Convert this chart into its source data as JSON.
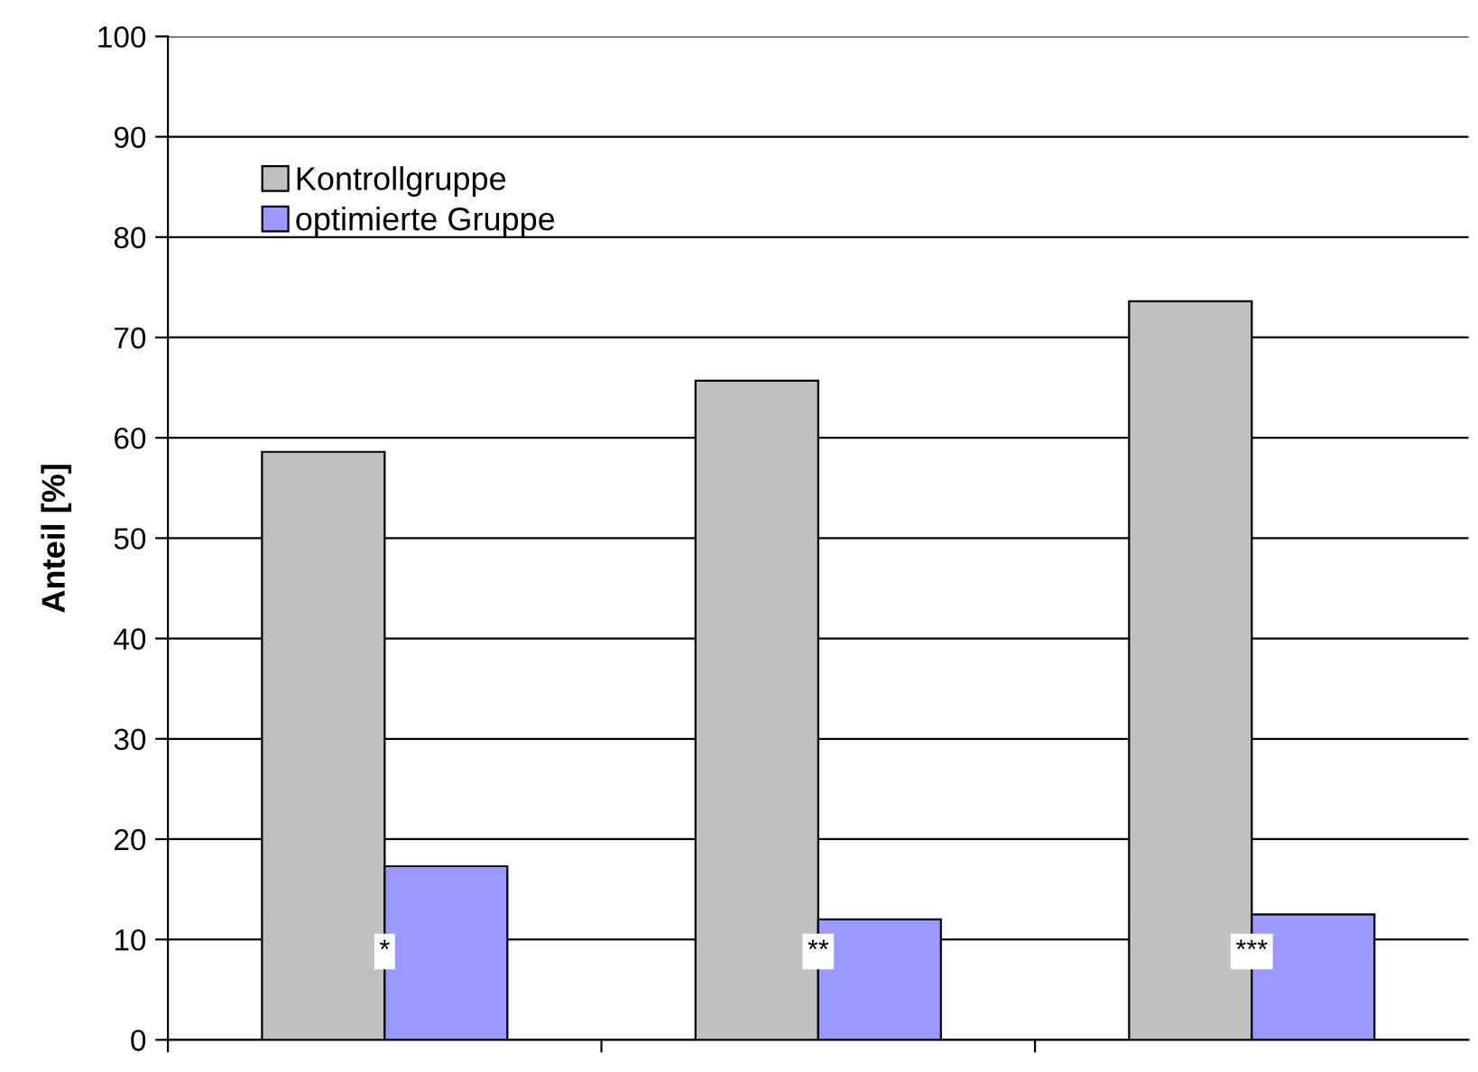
{
  "chart_data": {
    "type": "bar",
    "ylabel": "Anteil [%]",
    "categories": [
      null,
      null,
      null
    ],
    "series": [
      {
        "name": "Kontrollgruppe",
        "color": "#c0c0c0",
        "values": [
          58.6,
          65.7,
          73.6
        ]
      },
      {
        "name": "optimierte Gruppe",
        "color": "#9999ff",
        "values": [
          17.3,
          12.0,
          12.5
        ]
      }
    ],
    "ylim": [
      0,
      100
    ],
    "yticks": [
      0,
      10,
      20,
      30,
      40,
      50,
      60,
      70,
      80,
      90,
      100
    ],
    "grid": "y",
    "legend": "top left",
    "annotations": [
      "*",
      "**",
      "***"
    ]
  }
}
